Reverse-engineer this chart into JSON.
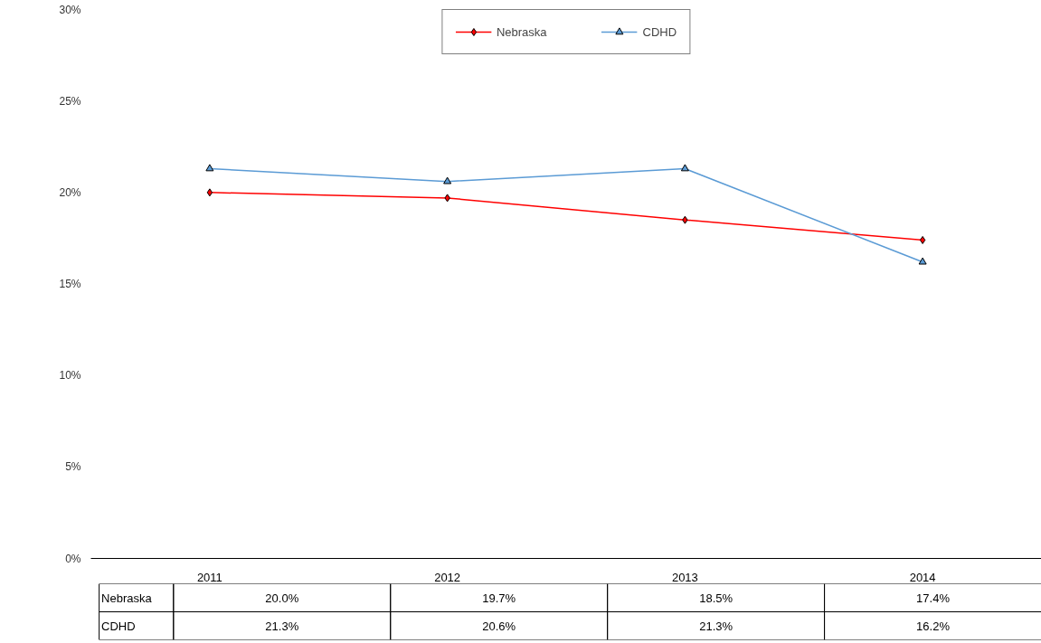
{
  "chart_data": {
    "type": "line",
    "categories": [
      "2011",
      "2012",
      "2013",
      "2014"
    ],
    "series": [
      {
        "name": "Nebraska",
        "color": "#ff0000",
        "marker": "diamond",
        "values": [
          20.0,
          19.7,
          18.5,
          17.4
        ],
        "value_labels": [
          "20.0%",
          "19.7%",
          "18.5%",
          "17.4%"
        ]
      },
      {
        "name": "CDHD",
        "color": "#5b9bd5",
        "marker": "triangle",
        "values": [
          21.3,
          20.6,
          21.3,
          16.2
        ],
        "value_labels": [
          "21.3%",
          "20.6%",
          "21.3%",
          "16.2%"
        ]
      }
    ],
    "ylim": [
      0,
      30
    ],
    "yticks": [
      {
        "value": 0,
        "label": "0%"
      },
      {
        "value": 5,
        "label": "5%"
      },
      {
        "value": 10,
        "label": "10%"
      },
      {
        "value": 15,
        "label": "15%"
      },
      {
        "value": 20,
        "label": "20%"
      },
      {
        "value": 25,
        "label": "25%"
      },
      {
        "value": 30,
        "label": "30%"
      }
    ],
    "grid": false,
    "legend": "top",
    "line_style": "solid"
  }
}
